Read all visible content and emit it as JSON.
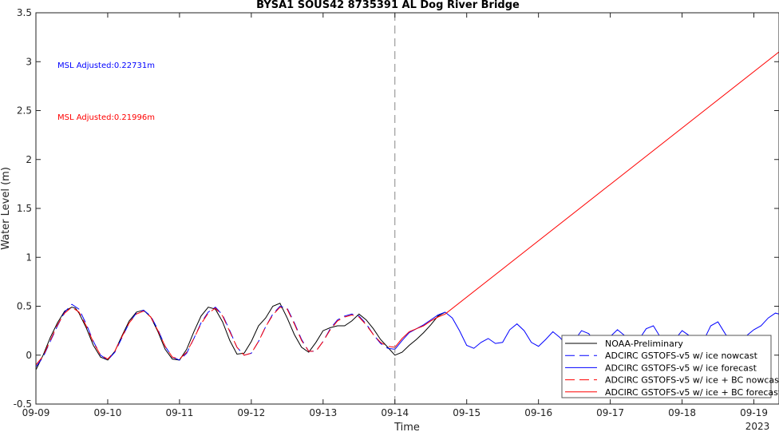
{
  "chart_data": {
    "type": "line",
    "title": "BYSA1 SOUS42 8735391 AL Dog River Bridge",
    "xlabel": "Time",
    "ylabel": "Water Level (m)",
    "x_year_label": "2023",
    "xlim": [
      0,
      10.35
    ],
    "ylim": [
      -0.5,
      3.5
    ],
    "x_ticks": [
      {
        "v": 0,
        "label": "09-09"
      },
      {
        "v": 1,
        "label": "09-10"
      },
      {
        "v": 2,
        "label": "09-11"
      },
      {
        "v": 3,
        "label": "09-12"
      },
      {
        "v": 4,
        "label": "09-13"
      },
      {
        "v": 5,
        "label": "09-14"
      },
      {
        "v": 6,
        "label": "09-15"
      },
      {
        "v": 7,
        "label": "09-16"
      },
      {
        "v": 8,
        "label": "09-17"
      },
      {
        "v": 9,
        "label": "09-18"
      },
      {
        "v": 10,
        "label": "09-19"
      }
    ],
    "y_ticks": [
      {
        "v": -0.5,
        "label": "-0.5"
      },
      {
        "v": 0,
        "label": "0"
      },
      {
        "v": 0.5,
        "label": "0.5"
      },
      {
        "v": 1,
        "label": "1"
      },
      {
        "v": 1.5,
        "label": "1.5"
      },
      {
        "v": 2,
        "label": "2"
      },
      {
        "v": 2.5,
        "label": "2.5"
      },
      {
        "v": 3,
        "label": "3"
      },
      {
        "v": 3.5,
        "label": "3.5"
      }
    ],
    "nowcast_forecast_boundary_x": 5,
    "annotations": [
      {
        "text": "MSL Adjusted:0.22731m",
        "color": "#0000ff",
        "x": 0.3,
        "y": 2.97
      },
      {
        "text": "MSL Adjusted:0.21996m",
        "color": "#ff0000",
        "x": 0.3,
        "y": 2.44
      }
    ],
    "legend_position": "bottom-right",
    "series": [
      {
        "name": "NOAA-Preliminary",
        "color": "#000000",
        "dash": "solid",
        "x": [
          0,
          0.1,
          0.2,
          0.3,
          0.4,
          0.5,
          0.55,
          0.6,
          0.7,
          0.8,
          0.9,
          1.0,
          1.1,
          1.2,
          1.3,
          1.4,
          1.5,
          1.6,
          1.7,
          1.8,
          1.9,
          2.0,
          2.1,
          2.2,
          2.3,
          2.4,
          2.5,
          2.6,
          2.7,
          2.8,
          2.9,
          3.0,
          3.1,
          3.2,
          3.3,
          3.4,
          3.5,
          3.6,
          3.7,
          3.8,
          3.9,
          4.0,
          4.1,
          4.2,
          4.3,
          4.4,
          4.5,
          4.6,
          4.7,
          4.8,
          4.9,
          5.0,
          5.1,
          5.2,
          5.3,
          5.4,
          5.5,
          5.6,
          5.7
        ],
        "y": [
          -0.15,
          0.0,
          0.18,
          0.33,
          0.45,
          0.49,
          0.48,
          0.43,
          0.28,
          0.1,
          -0.02,
          -0.05,
          0.04,
          0.2,
          0.35,
          0.44,
          0.46,
          0.39,
          0.24,
          0.06,
          -0.04,
          -0.05,
          0.06,
          0.24,
          0.4,
          0.49,
          0.47,
          0.34,
          0.15,
          0.01,
          0.02,
          0.14,
          0.3,
          0.38,
          0.5,
          0.53,
          0.38,
          0.21,
          0.08,
          0.03,
          0.13,
          0.25,
          0.28,
          0.3,
          0.3,
          0.35,
          0.42,
          0.36,
          0.27,
          0.16,
          0.08,
          0.0,
          0.03,
          0.1,
          0.16,
          0.23,
          0.31,
          0.4,
          0.44
        ]
      },
      {
        "name": "ADCIRC GSTOFS-v5 w/ ice nowcast",
        "color": "#0000ff",
        "dash": "dashed",
        "x": [
          0,
          0.1,
          0.2,
          0.3,
          0.4,
          0.5,
          0.6,
          0.7,
          0.8,
          0.9,
          1.0,
          1.1,
          1.2,
          1.3,
          1.4,
          1.5,
          1.6,
          1.7,
          1.8,
          1.9,
          2.0,
          2.1,
          2.2,
          2.3,
          2.4,
          2.5,
          2.6,
          2.7,
          2.8,
          2.9,
          3.0,
          3.1,
          3.2,
          3.3,
          3.4,
          3.5,
          3.6,
          3.7,
          3.8,
          3.9,
          4.0,
          4.1,
          4.2,
          4.3,
          4.4,
          4.5,
          4.6,
          4.7,
          4.8,
          4.9,
          5.0
        ],
        "y": [
          -0.12,
          -0.02,
          0.14,
          0.3,
          0.44,
          0.52,
          0.47,
          0.32,
          0.14,
          0.0,
          -0.05,
          0.03,
          0.18,
          0.33,
          0.43,
          0.46,
          0.4,
          0.26,
          0.09,
          -0.02,
          -0.05,
          0.02,
          0.17,
          0.33,
          0.44,
          0.49,
          0.41,
          0.25,
          0.08,
          0.0,
          0.02,
          0.14,
          0.29,
          0.42,
          0.5,
          0.48,
          0.33,
          0.16,
          0.04,
          0.04,
          0.14,
          0.27,
          0.36,
          0.4,
          0.42,
          0.4,
          0.32,
          0.21,
          0.12,
          0.07,
          0.06
        ]
      },
      {
        "name": "ADCIRC GSTOFS-v5 w/ ice forecast",
        "color": "#0000ff",
        "dash": "solid",
        "x": [
          5.0,
          5.1,
          5.2,
          5.3,
          5.4,
          5.5,
          5.6,
          5.7,
          5.8,
          5.9,
          6.0,
          6.1,
          6.2,
          6.3,
          6.4,
          6.5,
          6.6,
          6.7,
          6.8,
          6.9,
          7.0,
          7.1,
          7.2,
          7.3,
          7.4,
          7.5,
          7.6,
          7.7,
          7.8,
          7.9,
          8.0,
          8.1,
          8.2,
          8.3,
          8.4,
          8.5,
          8.6,
          8.7,
          8.8,
          8.9,
          9.0,
          9.1,
          9.2,
          9.3,
          9.4,
          9.5,
          9.6,
          9.7,
          9.8,
          9.9,
          10.0,
          10.1,
          10.2,
          10.3,
          10.35
        ],
        "y": [
          0.06,
          0.15,
          0.23,
          0.27,
          0.31,
          0.36,
          0.41,
          0.44,
          0.38,
          0.25,
          0.1,
          0.07,
          0.13,
          0.17,
          0.12,
          0.13,
          0.26,
          0.32,
          0.25,
          0.13,
          0.09,
          0.16,
          0.24,
          0.18,
          0.09,
          0.15,
          0.25,
          0.22,
          0.12,
          0.1,
          0.19,
          0.26,
          0.2,
          0.12,
          0.16,
          0.27,
          0.3,
          0.18,
          0.12,
          0.16,
          0.25,
          0.2,
          0.11,
          0.15,
          0.3,
          0.34,
          0.22,
          0.12,
          0.12,
          0.2,
          0.26,
          0.3,
          0.38,
          0.43,
          0.42
        ]
      },
      {
        "name": "ADCIRC GSTOFS-v5 w/ ice + BC nowcast",
        "color": "#ff0000",
        "dash": "dashed",
        "x": [
          0,
          0.1,
          0.2,
          0.3,
          0.4,
          0.5,
          0.6,
          0.7,
          0.8,
          0.9,
          1.0,
          1.1,
          1.2,
          1.3,
          1.4,
          1.5,
          1.6,
          1.7,
          1.8,
          1.9,
          2.0,
          2.1,
          2.2,
          2.3,
          2.4,
          2.5,
          2.6,
          2.7,
          2.8,
          2.9,
          3.0,
          3.1,
          3.2,
          3.3,
          3.4,
          3.5,
          3.6,
          3.7,
          3.8,
          3.9,
          4.0,
          4.1,
          4.2,
          4.3,
          4.4,
          4.5,
          4.6,
          4.7,
          4.8,
          4.9,
          5.0
        ],
        "y": [
          -0.1,
          -0.01,
          0.15,
          0.31,
          0.43,
          0.49,
          0.44,
          0.3,
          0.13,
          0.0,
          -0.04,
          0.04,
          0.19,
          0.33,
          0.42,
          0.45,
          0.39,
          0.25,
          0.09,
          -0.02,
          -0.04,
          0.03,
          0.17,
          0.32,
          0.43,
          0.48,
          0.4,
          0.24,
          0.08,
          0.0,
          0.02,
          0.14,
          0.29,
          0.41,
          0.49,
          0.47,
          0.32,
          0.15,
          0.04,
          0.04,
          0.14,
          0.26,
          0.35,
          0.39,
          0.41,
          0.39,
          0.31,
          0.21,
          0.13,
          0.09,
          0.08
        ]
      },
      {
        "name": "ADCIRC GSTOFS-v5 w/ ice + BC forecast",
        "color": "#ff0000",
        "dash": "solid",
        "x": [
          5.0,
          5.1,
          5.2,
          5.3,
          5.4,
          5.5,
          5.6,
          5.7,
          10.35
        ],
        "y": [
          0.08,
          0.17,
          0.24,
          0.27,
          0.3,
          0.35,
          0.39,
          0.42,
          3.1
        ]
      }
    ]
  }
}
